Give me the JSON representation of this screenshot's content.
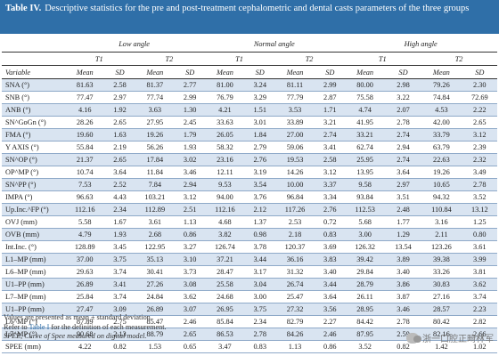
{
  "title": {
    "label": "Table IV.",
    "text": "Descriptive statistics for the pre and post-treatment cephalometric and dental casts parameters of the three groups"
  },
  "groups": [
    "Low angle",
    "Normal angle",
    "High angle"
  ],
  "times": [
    "T1",
    "T2",
    "T1",
    "T2",
    "T1",
    "T2"
  ],
  "variable_header": "Variable",
  "stat_header": [
    "Mean",
    "SD",
    "Mean",
    "SD",
    "Mean",
    "SD",
    "Mean",
    "SD",
    "Mean",
    "SD",
    "Mean",
    "SD"
  ],
  "rows": [
    {
      "name": "SNA (°)",
      "vals": [
        "81.63",
        "2.58",
        "81.37",
        "2.77",
        "81.00",
        "3.24",
        "81.11",
        "2.99",
        "80.00",
        "2.98",
        "79.26",
        "2.30"
      ]
    },
    {
      "name": "SNB (°)",
      "vals": [
        "77.47",
        "2.97",
        "77.74",
        "2.99",
        "76.79",
        "3.29",
        "77.79",
        "2.87",
        "75.58",
        "3.22",
        "74.84",
        "72.69"
      ]
    },
    {
      "name": "ANB (°)",
      "vals": [
        "4.16",
        "1.92",
        "3.63",
        "1.30",
        "4.21",
        "1.51",
        "3.53",
        "1.71",
        "4.74",
        "2.07",
        "4.53",
        "2.22"
      ]
    },
    {
      "name": "SN^GoGn (°)",
      "vals": [
        "28.26",
        "2.65",
        "27.95",
        "2.45",
        "33.63",
        "3.01",
        "33.89",
        "3.21",
        "41.95",
        "2.78",
        "42.00",
        "2.65"
      ]
    },
    {
      "name": "FMA (°)",
      "vals": [
        "19.60",
        "1.63",
        "19.26",
        "1.79",
        "26.05",
        "1.84",
        "27.00",
        "2.74",
        "33.21",
        "2.74",
        "33.79",
        "3.12"
      ]
    },
    {
      "name": "Y AXIS (°)",
      "vals": [
        "55.84",
        "2.19",
        "56.26",
        "1.93",
        "58.32",
        "2.79",
        "59.06",
        "3.41",
        "62.74",
        "2.94",
        "63.79",
        "2.39"
      ]
    },
    {
      "name": "SN^OP (°)",
      "vals": [
        "21.37",
        "2.65",
        "17.84",
        "3.02",
        "23.16",
        "2.76",
        "19.53",
        "2.58",
        "25.95",
        "2.74",
        "22.63",
        "2.32"
      ]
    },
    {
      "name": "OP^MP (°)",
      "vals": [
        "10.74",
        "3.64",
        "11.84",
        "3.46",
        "12.11",
        "3.19",
        "14.26",
        "3.12",
        "13.95",
        "3.64",
        "19.26",
        "3.49"
      ]
    },
    {
      "name": "SN^PP (°)",
      "vals": [
        "7.53",
        "2.52",
        "7.84",
        "2.94",
        "9.53",
        "3.54",
        "10.00",
        "3.37",
        "9.58",
        "2.97",
        "10.65",
        "2.78"
      ]
    },
    {
      "name": "IMPA (°)",
      "vals": [
        "96.63",
        "4.43",
        "103.21",
        "3.12",
        "94.00",
        "3.76",
        "96.84",
        "3.34",
        "93.84",
        "3.51",
        "94.32",
        "3.52"
      ]
    },
    {
      "name": "Up.Inc.^FP (°)",
      "vals": [
        "112.16",
        "2.34",
        "112.89",
        "2.51",
        "112.16",
        "2.12",
        "117.26",
        "2.76",
        "112.53",
        "2.48",
        "110.84",
        "13.12"
      ]
    },
    {
      "name": "OVJ (mm)",
      "vals": [
        "5.58",
        "1.67",
        "3.61",
        "1.13",
        "4.68",
        "1.37",
        "2.53",
        "0.72",
        "5.68",
        "1.77",
        "3.16",
        "1.25"
      ]
    },
    {
      "name": "OVB (mm)",
      "vals": [
        "4.79",
        "1.93",
        "2.68",
        "0.86",
        "3.82",
        "0.98",
        "2.18",
        "0.83",
        "3.00",
        "1.29",
        "2.11",
        "0.80"
      ]
    },
    {
      "name": "Int.Inc. (°)",
      "vals": [
        "128.89",
        "3.45",
        "122.95",
        "3.27",
        "126.74",
        "3.78",
        "120.37",
        "3.69",
        "126.32",
        "13.54",
        "123.26",
        "3.61"
      ]
    },
    {
      "name": "L1–MP (mm)",
      "vals": [
        "37.00",
        "3.75",
        "35.13",
        "3.10",
        "37.21",
        "3.44",
        "36.16",
        "3.83",
        "39.42",
        "3.89",
        "39.38",
        "3.99"
      ]
    },
    {
      "name": "L6–MP (mm)",
      "vals": [
        "29.63",
        "3.74",
        "30.41",
        "3.73",
        "28.47",
        "3.17",
        "31.32",
        "3.40",
        "29.84",
        "3.40",
        "33.26",
        "3.81"
      ]
    },
    {
      "name": "U1–PP (mm)",
      "vals": [
        "26.89",
        "3.41",
        "27.26",
        "3.08",
        "25.58",
        "3.04",
        "26.74",
        "3.44",
        "28.79",
        "3.86",
        "30.83",
        "3.62"
      ]
    },
    {
      "name": "L7–MP (mm)",
      "vals": [
        "25.84",
        "3.74",
        "24.84",
        "3.62",
        "24.68",
        "3.00",
        "25.47",
        "3.64",
        "26.11",
        "3.87",
        "27.16",
        "3.74"
      ]
    },
    {
      "name": "U1–PP (mm)",
      "vals": [
        "27.47",
        "3.09",
        "26.89",
        "3.07",
        "26.95",
        "3.75",
        "27.32",
        "3.56",
        "28.95",
        "3.46",
        "28.57",
        "2.23"
      ]
    },
    {
      "name": "L6^MP (°)",
      "vals": [
        "87.89",
        "2.75",
        "85.47",
        "2.46",
        "85.84",
        "2.34",
        "82.79",
        "2.27",
        "84.42",
        "2.78",
        "80.42",
        "2.82"
      ]
    },
    {
      "name": "L7^MP (°)",
      "vals": [
        "90.68",
        "2.13",
        "88.79",
        "2.65",
        "86.53",
        "2.78",
        "84.26",
        "2.46",
        "87.95",
        "2.59",
        "82.16",
        "2.66"
      ]
    },
    {
      "name": "SPEE (mm)",
      "vals": [
        "4.22",
        "0.82",
        "1.53",
        "0.65",
        "3.47",
        "0.83",
        "1.13",
        "0.86",
        "3.52",
        "0.82",
        "1.42",
        "1.02"
      ]
    }
  ],
  "footnotes": {
    "line1": "Values are presented as mean ± standard deviation.",
    "line2_pre": "Refer to ",
    "line2_link": "Table I",
    "line2_post": " for the definition of each measurement.",
    "line3": "SPEE, Curve of Spee measured on digital model."
  },
  "watermark": "浙一口腔正畸林军"
}
